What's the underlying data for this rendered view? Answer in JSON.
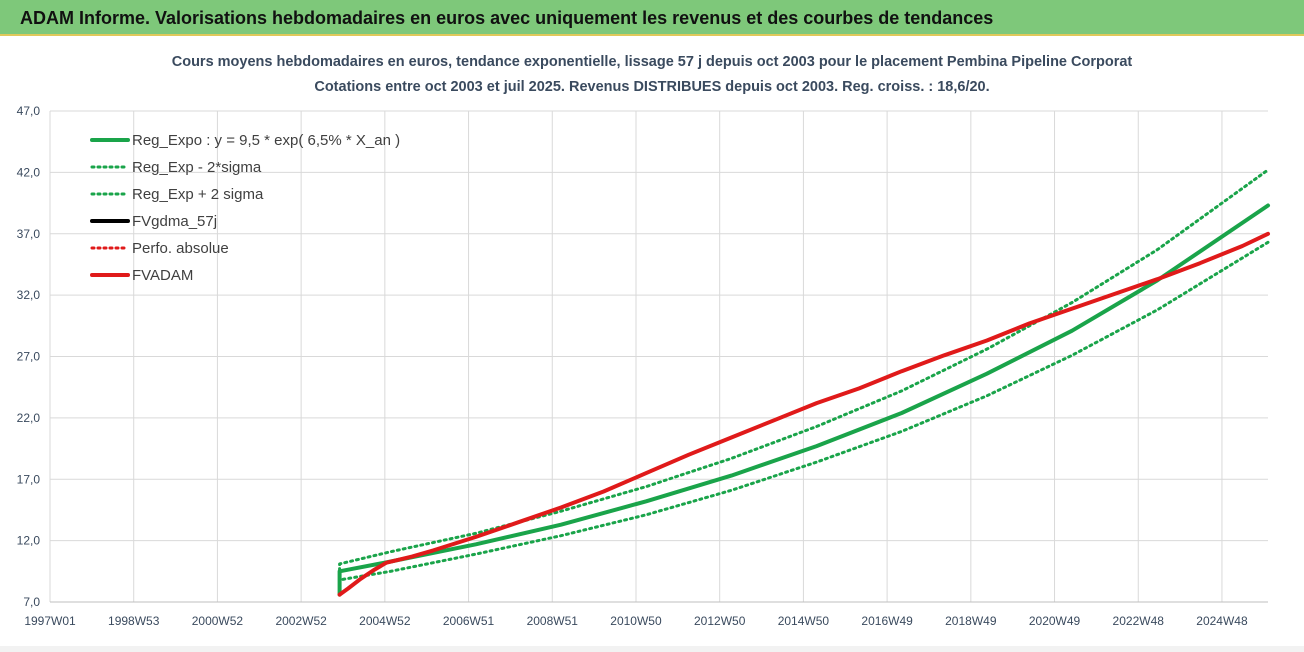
{
  "header": {
    "title": "ADAM Informe. Valorisations hebdomadaires en euros avec uniquement les revenus et des courbes de tendances"
  },
  "colors": {
    "banner": "#7ec87a",
    "reg": "#1aa44a",
    "fv": "#e01a1a",
    "fvgdma": "#000000",
    "grid": "#d9d9d9"
  },
  "chart_data": {
    "type": "line",
    "title": "Cours moyens hebdomadaires en euros, tendance exponentielle, lissage 57 j depuis oct 2003 pour le placement Pembina Pipeline Corporat",
    "subtitle": "Cotations entre oct 2003 et juil 2025. Revenus DISTRIBUES depuis oct 2003. Reg. croiss. : 18,6/20.",
    "xlabel": "",
    "ylabel": "",
    "ylim": [
      7.0,
      47.0
    ],
    "xlim": [
      1997.0,
      2025.6
    ],
    "x_tick_labels": [
      "1997W01",
      "1998W53",
      "2000W52",
      "2002W52",
      "2004W52",
      "2006W51",
      "2008W51",
      "2010W50",
      "2012W50",
      "2014W50",
      "2016W49",
      "2018W49",
      "2020W49",
      "2022W48",
      "2024W48"
    ],
    "y_tick_labels": [
      "7,0",
      "12,0",
      "17,0",
      "22,0",
      "27,0",
      "32,0",
      "37,0",
      "42,0",
      "47,0"
    ],
    "y_ticks": [
      7,
      12,
      17,
      22,
      27,
      32,
      37,
      42,
      47
    ],
    "grid": true,
    "legend_position": "top-left",
    "series": [
      {
        "name": "Reg_Expo : y = 9,5 * exp( 6,5% *  X_an )",
        "style": "solid",
        "color": "#1aa44a",
        "x": [
          2003.8,
          2003.8,
          2005,
          2007,
          2009,
          2011,
          2013,
          2015,
          2017,
          2019,
          2021,
          2023,
          2025.6
        ],
        "values": [
          7.6,
          9.5,
          10.3,
          11.7,
          13.3,
          15.2,
          17.3,
          19.7,
          22.4,
          25.6,
          29.1,
          33.2,
          39.3
        ]
      },
      {
        "name": "Reg_Exp - 2*sigma",
        "style": "dotted",
        "color": "#1aa44a",
        "x": [
          2003.8,
          2003.8,
          2005,
          2007,
          2009,
          2011,
          2013,
          2015,
          2017,
          2019,
          2021,
          2023,
          2025.6
        ],
        "values": [
          7.6,
          8.8,
          9.5,
          10.9,
          12.4,
          14.1,
          16.1,
          18.4,
          20.9,
          23.8,
          27.1,
          30.8,
          36.3
        ]
      },
      {
        "name": "Reg_Exp + 2 sigma",
        "style": "dotted",
        "color": "#1aa44a",
        "x": [
          2003.8,
          2003.8,
          2005,
          2007,
          2009,
          2011,
          2013,
          2015,
          2017,
          2019,
          2021,
          2023,
          2025.6
        ],
        "values": [
          7.6,
          10.1,
          11.1,
          12.6,
          14.4,
          16.4,
          18.7,
          21.3,
          24.2,
          27.6,
          31.4,
          35.7,
          42.2
        ]
      },
      {
        "name": "FVgdma_57j",
        "style": "solid",
        "color": "#000000",
        "x": [],
        "values": []
      },
      {
        "name": "Perfo. absolue",
        "style": "dotted",
        "color": "#e01a1a",
        "x": [],
        "values": []
      },
      {
        "name": "FVADAM",
        "style": "solid",
        "color": "#e01a1a",
        "x": [
          2003.8,
          2004.0,
          2004.3,
          2004.6,
          2004.9,
          2005.5,
          2006.0,
          2007.0,
          2008.0,
          2009.0,
          2010.0,
          2011.0,
          2012.0,
          2013.0,
          2014.0,
          2015.0,
          2016.0,
          2017.0,
          2018.0,
          2019.0,
          2020.0,
          2021.0,
          2022.0,
          2023.0,
          2024.0,
          2025.0,
          2025.6
        ],
        "values": [
          7.6,
          8.1,
          8.9,
          9.6,
          10.2,
          10.7,
          11.2,
          12.3,
          13.5,
          14.7,
          16.0,
          17.5,
          19.0,
          20.4,
          21.8,
          23.2,
          24.4,
          25.8,
          27.1,
          28.3,
          29.7,
          30.9,
          32.1,
          33.3,
          34.6,
          36.0,
          37.0
        ]
      }
    ]
  }
}
